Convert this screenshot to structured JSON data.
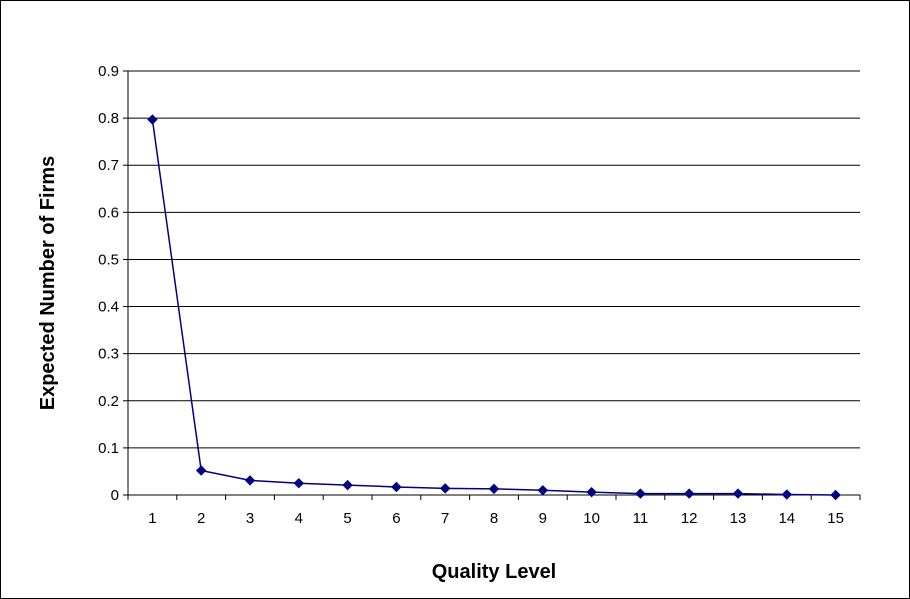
{
  "chart_data": {
    "type": "line",
    "title": "",
    "xlabel": "Quality Level",
    "ylabel": "Expected Number of Firms",
    "categories": [
      "1",
      "2",
      "3",
      "4",
      "5",
      "6",
      "7",
      "8",
      "9",
      "10",
      "11",
      "12",
      "13",
      "14",
      "15"
    ],
    "series": [
      {
        "values": [
          0.797,
          0.052,
          0.031,
          0.025,
          0.021,
          0.017,
          0.014,
          0.013,
          0.01,
          0.006,
          0.003,
          0.003,
          0.003,
          0.001,
          0.0
        ],
        "color": "#000080",
        "marker": "diamond"
      }
    ],
    "ylim": [
      0,
      0.9
    ],
    "yticks": [
      "0",
      "0.1",
      "0.2",
      "0.3",
      "0.4",
      "0.5",
      "0.6",
      "0.7",
      "0.8",
      "0.9"
    ],
    "grid": "horizontal",
    "legend": "none"
  }
}
